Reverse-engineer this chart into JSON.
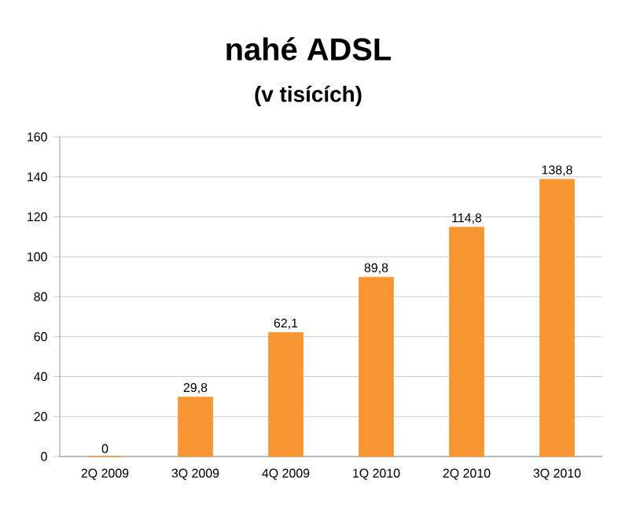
{
  "chart_data": {
    "type": "bar",
    "title": "nahé ADSL",
    "subtitle": "(v tisících)",
    "categories": [
      "2Q 2009",
      "3Q 2009",
      "4Q 2009",
      "1Q 2010",
      "2Q 2010",
      "3Q 2010"
    ],
    "values": [
      0,
      29.8,
      62.1,
      89.8,
      114.8,
      138.8
    ],
    "value_labels": [
      "0",
      "29,8",
      "62,1",
      "89,8",
      "114,8",
      "138,8"
    ],
    "color": "#f79633",
    "ylim": [
      0,
      160
    ],
    "yticks": [
      0,
      20,
      40,
      60,
      80,
      100,
      120,
      140,
      160
    ],
    "grid": "y"
  }
}
